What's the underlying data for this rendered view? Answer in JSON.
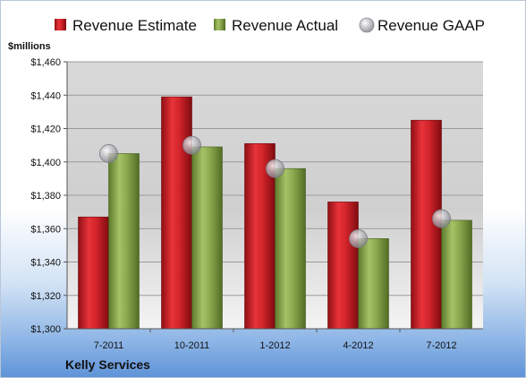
{
  "chart_data": {
    "type": "bar",
    "ylabel": "$millions",
    "company": "Kelly Services",
    "categories": [
      "7-2011",
      "10-2011",
      "1-2012",
      "4-2012",
      "7-2012"
    ],
    "series": [
      {
        "name": "Revenue Estimate",
        "values": [
          1367,
          1439,
          1411,
          1376,
          1425
        ],
        "color": "#cc1f26"
      },
      {
        "name": "Revenue Actual",
        "values": [
          1405,
          1409,
          1396,
          1354,
          1365
        ],
        "color": "#86a34a"
      }
    ],
    "gaap": {
      "name": "Revenue GAAP",
      "values": [
        1405,
        1410,
        1396,
        1354,
        1366
      ],
      "color": "#b9b9bf"
    },
    "ylim": [
      1300,
      1460
    ],
    "yticks": [
      "$1,300",
      "$1,320",
      "$1,340",
      "$1,360",
      "$1,380",
      "$1,400",
      "$1,420",
      "$1,440",
      "$1,460"
    ],
    "grid": true,
    "legend": "top"
  }
}
